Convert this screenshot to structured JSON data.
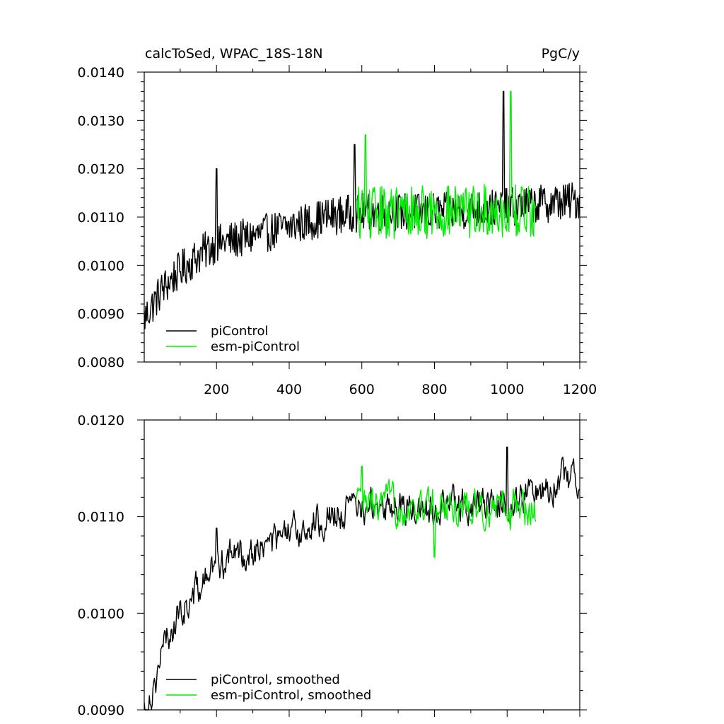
{
  "chart_data": [
    {
      "type": "line",
      "title": "calcToSed, WPAC_18S-18N",
      "units": "PgC/y",
      "xlabel": "",
      "ylabel": "",
      "xlim": [
        1,
        1200
      ],
      "ylim": [
        0.008,
        0.014
      ],
      "xticks": [
        200,
        400,
        600,
        800,
        1000,
        1200
      ],
      "xtick_labels": [
        "200",
        "400",
        "600",
        "800",
        "1000",
        "1200"
      ],
      "yticks": [
        0.008,
        0.009,
        0.01,
        0.011,
        0.012,
        0.013,
        0.014
      ],
      "ytick_labels": [
        "0.0080",
        "0.0090",
        "0.0100",
        "0.0110",
        "0.0120",
        "0.0130",
        "0.0140"
      ],
      "legend_position": "bottom-left",
      "series": [
        {
          "name": "piControl",
          "color": "#000000",
          "x_range": [
            1,
            1200
          ],
          "trend": [
            [
              1,
              0.0089
            ],
            [
              50,
              0.0095
            ],
            [
              100,
              0.0099
            ],
            [
              150,
              0.0102
            ],
            [
              200,
              0.01045
            ],
            [
              300,
              0.0106
            ],
            [
              400,
              0.0108
            ],
            [
              500,
              0.011
            ],
            [
              600,
              0.0111
            ],
            [
              800,
              0.0111
            ],
            [
              1000,
              0.0112
            ],
            [
              1200,
              0.01135
            ]
          ],
          "noise_amplitude": 0.0004,
          "spikes": [
            [
              200,
              0.012
            ],
            [
              580,
              0.0125
            ],
            [
              990,
              0.0136
            ]
          ]
        },
        {
          "name": "esm-piControl",
          "color": "#00ee00",
          "x_range": [
            585,
            1080
          ],
          "trend": [
            [
              585,
              0.0111
            ],
            [
              800,
              0.0111
            ],
            [
              1080,
              0.01115
            ]
          ],
          "noise_amplitude": 0.00055,
          "spikes": [
            [
              610,
              0.0127
            ],
            [
              1010,
              0.0136
            ]
          ]
        }
      ]
    },
    {
      "type": "line",
      "title": "",
      "xlabel": "",
      "ylabel": "",
      "xlim": [
        1,
        1200
      ],
      "ylim": [
        0.009,
        0.012
      ],
      "yticks": [
        0.009,
        0.01,
        0.011,
        0.012
      ],
      "ytick_labels": [
        "0.0090",
        "0.0100",
        "0.0110",
        "0.0120"
      ],
      "legend_position": "bottom-left",
      "series": [
        {
          "name": "piControl, smoothed",
          "color": "#000000",
          "x_range": [
            1,
            1200
          ],
          "trend": [
            [
              1,
              0.009
            ],
            [
              30,
              0.0093
            ],
            [
              60,
              0.0097
            ],
            [
              100,
              0.01
            ],
            [
              150,
              0.01025
            ],
            [
              200,
              0.0105
            ],
            [
              250,
              0.0106
            ],
            [
              300,
              0.01065
            ],
            [
              400,
              0.0108
            ],
            [
              500,
              0.011
            ],
            [
              600,
              0.0111
            ],
            [
              800,
              0.0111
            ],
            [
              1000,
              0.01115
            ],
            [
              1200,
              0.01145
            ]
          ],
          "noise_amplitude": 0.00018,
          "spikes": [
            [
              200,
              0.01088
            ],
            [
              1000,
              0.01172
            ]
          ]
        },
        {
          "name": "esm-piControl, smoothed",
          "color": "#00ee00",
          "x_range": [
            585,
            1080
          ],
          "trend": [
            [
              585,
              0.0111
            ],
            [
              800,
              0.0111
            ],
            [
              1080,
              0.0111
            ]
          ],
          "noise_amplitude": 0.0002,
          "spikes": [
            [
              600,
              0.01152
            ],
            [
              800,
              0.01058
            ]
          ]
        }
      ]
    }
  ]
}
